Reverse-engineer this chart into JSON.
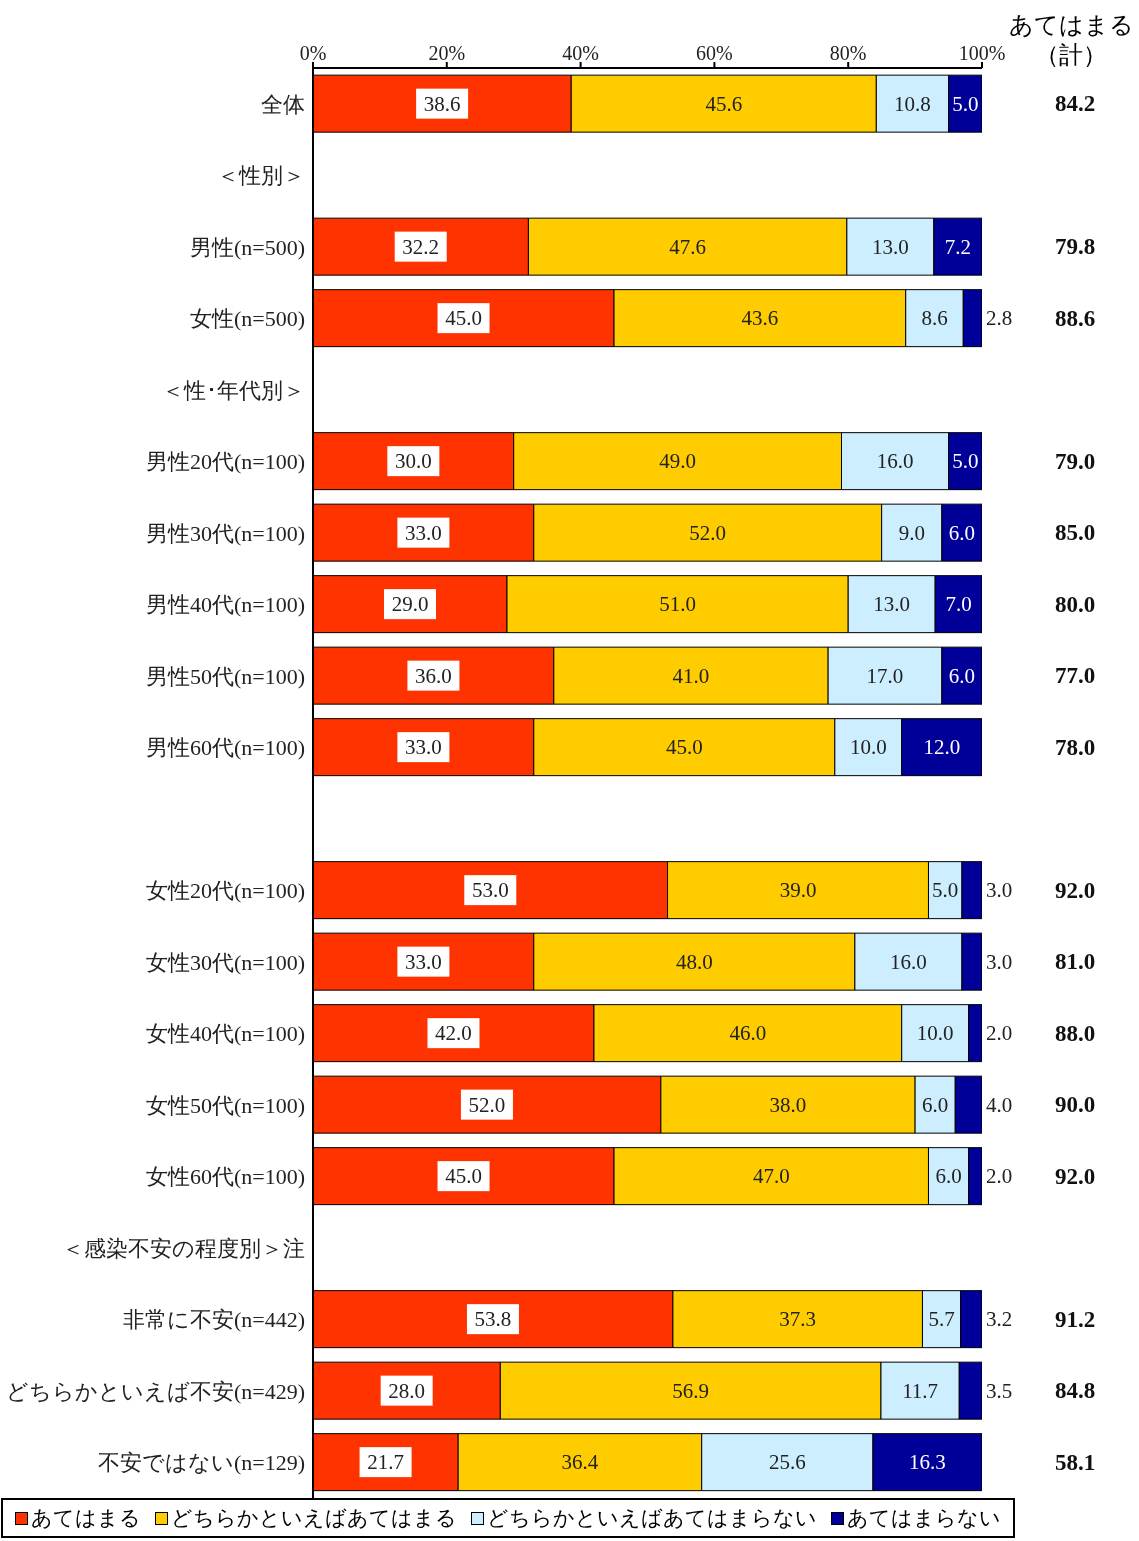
{
  "chart_data": {
    "type": "bar",
    "orientation": "horizontal",
    "stacked": true,
    "legend": "bottom",
    "categories": [
      "全体",
      "＜性別＞",
      "男性(n=500)",
      "女性(n=500)",
      "＜性･年代別＞",
      "男性20代(n=100)",
      "男性30代(n=100)",
      "男性40代(n=100)",
      "男性50代(n=100)",
      "男性60代(n=100)",
      null,
      "女性20代(n=100)",
      "女性30代(n=100)",
      "女性40代(n=100)",
      "女性50代(n=100)",
      "女性60代(n=100)",
      "＜感染不安の程度別＞注",
      "非常に不安(n=442)",
      "どちらかといえば不安(n=429)",
      "不安ではない(n=129)"
    ],
    "xlim": [
      0,
      100
    ],
    "xticks": [
      {
        "value": 0,
        "label": "0%"
      },
      {
        "value": 20,
        "label": "20%"
      },
      {
        "value": 40,
        "label": "40%"
      },
      {
        "value": 60,
        "label": "60%"
      },
      {
        "value": 80,
        "label": "80%"
      },
      {
        "value": 100,
        "label": "100%"
      }
    ],
    "series": [
      {
        "name": "あてはまる",
        "color": "#ff3300",
        "values": [
          38.6,
          null,
          32.2,
          45.0,
          null,
          30.0,
          33.0,
          29.0,
          36.0,
          33.0,
          null,
          53.0,
          33.0,
          42.0,
          52.0,
          45.0,
          null,
          53.8,
          28.0,
          21.7
        ],
        "value_labels": [
          "38.6",
          null,
          "32.2",
          "45.0",
          null,
          "30.0",
          "33.0",
          "29.0",
          "36.0",
          "33.0",
          null,
          "53.0",
          "33.0",
          "42.0",
          "52.0",
          "45.0",
          null,
          "53.8",
          "28.0",
          "21.7"
        ]
      },
      {
        "name": "どちらかといえばあてはまる",
        "color": "#ffcc00",
        "values": [
          45.6,
          null,
          47.6,
          43.6,
          null,
          49.0,
          52.0,
          51.0,
          41.0,
          45.0,
          null,
          39.0,
          48.0,
          46.0,
          38.0,
          47.0,
          null,
          37.3,
          56.9,
          36.4
        ],
        "value_labels": [
          "45.6",
          null,
          "47.6",
          "43.6",
          null,
          "49.0",
          "52.0",
          "51.0",
          "41.0",
          "45.0",
          null,
          "39.0",
          "48.0",
          "46.0",
          "38.0",
          "47.0",
          null,
          "37.3",
          "56.9",
          "36.4"
        ]
      },
      {
        "name": "どちらかといえばあてはまらない",
        "color": "#cceeff",
        "values": [
          10.8,
          null,
          13.0,
          8.6,
          null,
          16.0,
          9.0,
          13.0,
          17.0,
          10.0,
          null,
          5.0,
          16.0,
          10.0,
          6.0,
          6.0,
          null,
          5.7,
          11.7,
          25.6
        ],
        "value_labels": [
          "10.8",
          null,
          "13.0",
          "8.6",
          null,
          "16.0",
          "9.0",
          "13.0",
          "17.0",
          "10.0",
          null,
          "5.0",
          "16.0",
          "10.0",
          "6.0",
          "6.0",
          null,
          "5.7",
          "11.7",
          "25.6"
        ]
      },
      {
        "name": "あてはまらない",
        "color": "#000099",
        "values": [
          5.0,
          null,
          7.2,
          2.8,
          null,
          5.0,
          6.0,
          7.0,
          6.0,
          12.0,
          null,
          3.0,
          3.0,
          2.0,
          4.0,
          2.0,
          null,
          3.2,
          3.5,
          16.3
        ],
        "value_labels": [
          "5.0",
          null,
          "7.2",
          "2.8",
          null,
          "5.0",
          "6.0",
          "7.0",
          "6.0",
          "12.0",
          null,
          "3.0",
          "3.0",
          "2.0",
          "4.0",
          "2.0",
          null,
          "3.2",
          "3.5",
          "16.3"
        ]
      }
    ],
    "annotations": [
      "あてはまる（計）",
      "84.2",
      "79.8",
      "88.6",
      "79.0",
      "85.0",
      "80.0",
      "77.0",
      "78.0",
      "92.0",
      "81.0",
      "88.0",
      "90.0",
      "92.0",
      "91.2",
      "84.8",
      "58.1"
    ]
  }
}
